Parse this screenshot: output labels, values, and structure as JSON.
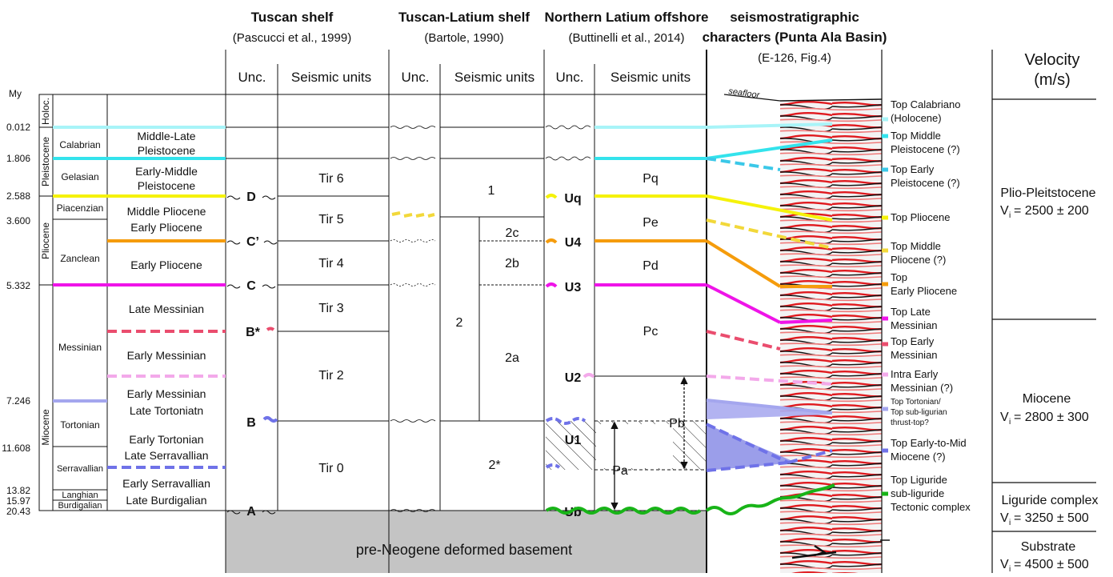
{
  "headers": {
    "tuscan_shelf": {
      "title": "Tuscan shelf",
      "source": "(Pascucci et al., 1999)"
    },
    "tuscan_latium": {
      "title": "Tuscan-Latium shelf",
      "source": "(Bartole, 1990)"
    },
    "northern_latium": {
      "title": "Northern Latium offshore",
      "source": "(Buttinelli et al., 2014)"
    },
    "seismo": {
      "title_line1": "seismostratigraphic",
      "title_line2": "characters (Punta Ala Basin)",
      "source": "(E-126, Fig.4)"
    },
    "velocity": {
      "title_line1": "Velocity",
      "title_line2": "(m/s)"
    }
  },
  "column_headers": {
    "unc": "Unc.",
    "seismic_units": "Seismic units"
  },
  "time_scale": {
    "my_label": "My",
    "ages": [
      "0.012",
      "1.806",
      "2.588",
      "3.600",
      "5.332",
      "7.246",
      "11.608",
      "13.82",
      "15.97",
      "20.43"
    ]
  },
  "epochs": [
    "Holoc.",
    "Pleistocene",
    "Pliocene",
    "Miocene"
  ],
  "stages": [
    "Calabrian",
    "Gelasian",
    "Piacenzian",
    "Zanclean",
    "Messinian",
    "Tortonian",
    "Serravallian",
    "Langhian",
    "Burdigalian"
  ],
  "intervals": [
    [
      "Middle-Late",
      "Pleistocene"
    ],
    [
      "Early-Middle",
      "Pleistocene"
    ],
    [
      "Middle Pliocene",
      "Early Pliocene"
    ],
    [
      "Early Pliocene"
    ],
    [
      "Late Messinian"
    ],
    [
      "Early Messinian"
    ],
    [
      "Early Messinian",
      "Late Tortoniatn"
    ],
    [
      "Early Tortonian",
      "Late Serravallian"
    ],
    [
      "Early Serravallian",
      "Late Burdigalian"
    ]
  ],
  "tuscan_unconformities": [
    "D",
    "C’",
    "C",
    "B*",
    "B",
    "A"
  ],
  "tuscan_units": [
    "Tir 6",
    "Tir 5",
    "Tir 4",
    "Tir 3",
    "Tir 2",
    "Tir 0"
  ],
  "latium_units": [
    "1",
    "2c",
    "2b",
    "2",
    "2a",
    "2*"
  ],
  "northern_unconformities": [
    "Uq",
    "U4",
    "U3",
    "U2",
    "U1",
    "Ub"
  ],
  "northern_units": [
    "Pq",
    "Pe",
    "Pd",
    "Pc",
    "Pb",
    "Pa"
  ],
  "basement_label": "pre-Neogene deformed basement",
  "seafloor_label": "seafloor",
  "horizon_labels": [
    [
      "Top Calabriano",
      "(Holocene)"
    ],
    [
      "Top Middle",
      "Pleistocene (?)"
    ],
    [
      "Top Early",
      "Pleistocene (?)"
    ],
    [
      "Top Pliocene"
    ],
    [
      "Top Middle",
      "Pliocene (?)"
    ],
    [
      "Top",
      "Early Pliocene"
    ],
    [
      "Top Late",
      "Messinian"
    ],
    [
      "Top Early",
      "Messinian"
    ],
    [
      "Intra Early",
      "Messinian (?)"
    ],
    [
      "Top Tortonian/",
      "Top sub-ligurian",
      "thrust-top?"
    ],
    [
      "Top Early-to-Mid",
      "Miocene (?)"
    ],
    [
      "Top Liguride",
      "sub-liguride",
      "Tectonic complex"
    ]
  ],
  "velocity": [
    {
      "name": "Plio-Pleitstocene",
      "value": "= 2500 ± 200"
    },
    {
      "name": "Miocene",
      "value": "= 2800 ± 300"
    },
    {
      "name": "Liguride complex",
      "value": "= 3250 ± 500"
    },
    {
      "name": "Substrate",
      "value": "= 4500 ± 500"
    }
  ],
  "velocity_symbol": "V",
  "velocity_subscript": "i",
  "colors": {
    "holocene": "#a8f4f8",
    "pleistocene": "#33e3ec",
    "early_pleistocene": "#3bc8e8",
    "pliocene_top": "#f5f20a",
    "mid_pliocene": "#f2d83a",
    "early_pliocene": "#f59c0c",
    "late_messinian": "#ef14e8",
    "early_messinian": "#ea4d6e",
    "intra_messinian": "#f3a9ea",
    "tortonian": "#a4a6ee",
    "mid_miocene": "#6f72e8",
    "liguride": "#18b418",
    "basement": "#c4c4c4"
  }
}
